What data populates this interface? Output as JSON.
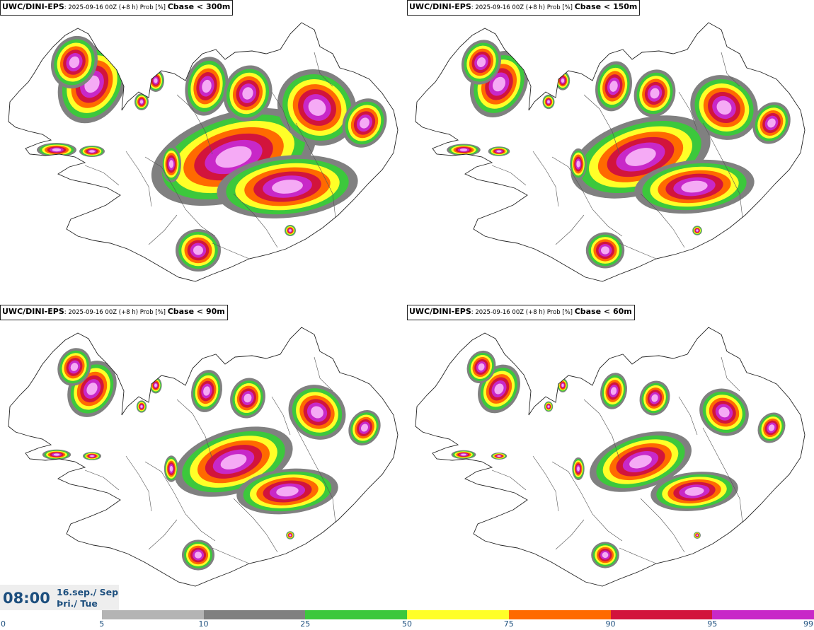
{
  "panels": [
    {
      "model": "UWC/DINI-EPS",
      "meta": ": 2025-09-16 00Z (+8 h) Prob [%] ",
      "threshold": "Cbase < 300m"
    },
    {
      "model": "UWC/DINI-EPS",
      "meta": ": 2025-09-16 00Z (+8 h) Prob [%] ",
      "threshold": "Cbase < 150m"
    },
    {
      "model": "UWC/DINI-EPS",
      "meta": ": 2025-09-16 00Z (+8 h) Prob [%] ",
      "threshold": "Cbase < 90m"
    },
    {
      "model": "UWC/DINI-EPS",
      "meta": ": 2025-09-16 00Z (+8 h) Prob [%] ",
      "threshold": "Cbase < 60m"
    }
  ],
  "valid_time": {
    "time": "08:00",
    "date_line": "16.sep./ Sep",
    "day_line": "Þri./ Tue"
  },
  "colorbar": {
    "ticks": [
      "0",
      "5",
      "10",
      "25",
      "50",
      "75",
      "90",
      "95",
      "99"
    ],
    "colors": [
      "#ffffff",
      "#b4b4b4",
      "#808080",
      "#3cc83c",
      "#ffff28",
      "#ff6a00",
      "#d2143c",
      "#c828c8",
      "#f5aaf5"
    ]
  }
}
